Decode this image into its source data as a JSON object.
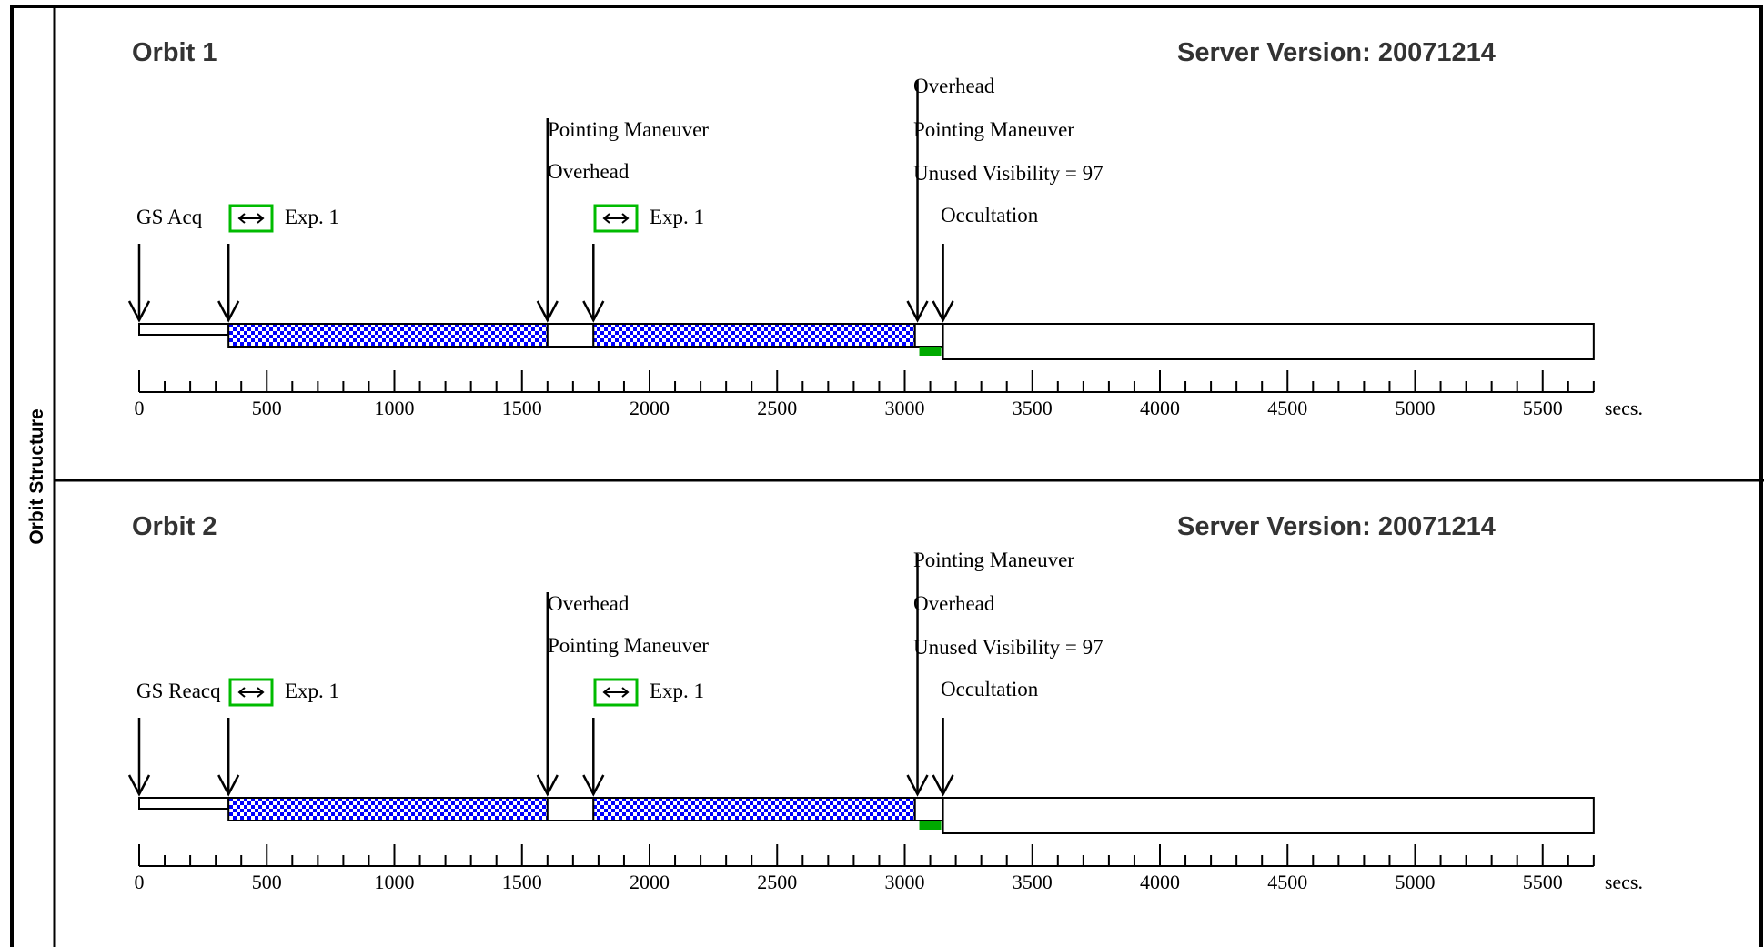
{
  "side_label": "Orbit Structure",
  "colors": {
    "exposure_fill": "#0000ff",
    "occultation_bar": "#00aa00",
    "exp_box": "#00bb00"
  },
  "orbits": [
    {
      "title": "Orbit 1",
      "server_version": "Server Version: 20071214",
      "labels": {
        "gs": "GS Acq",
        "exp_a": "Exp. 1",
        "mid_top": "Pointing Maneuver",
        "mid_bottom": "Overhead",
        "exp_b": "Exp. 1",
        "end_1": "Overhead",
        "end_2": "Pointing Maneuver",
        "end_3": "Unused Visibility = 97",
        "occ": "Occultation"
      }
    },
    {
      "title": "Orbit 2",
      "server_version": "Server Version: 20071214",
      "labels": {
        "gs": "GS Reacq",
        "exp_a": "Exp. 1",
        "mid_top": "Overhead",
        "mid_bottom": "Pointing Maneuver",
        "exp_b": "Exp. 1",
        "end_1": "Pointing Maneuver",
        "end_2": "Overhead",
        "end_3": "Unused Visibility = 97",
        "occ": "Occultation"
      }
    }
  ],
  "timeline": {
    "event_times_sec": [
      0,
      350,
      1600,
      1780,
      3050,
      3150
    ],
    "exposure_1_sec": [
      350,
      1600
    ],
    "exposure_2_sec": [
      1780,
      3040
    ],
    "occultation_sec": [
      3150,
      5700
    ],
    "axis_max_sec": 5700,
    "axis_ticks": [
      "0",
      "500",
      "1000",
      "1500",
      "2000",
      "2500",
      "3000",
      "3500",
      "4000",
      "4500",
      "5000",
      "5500"
    ],
    "unit": "secs."
  }
}
